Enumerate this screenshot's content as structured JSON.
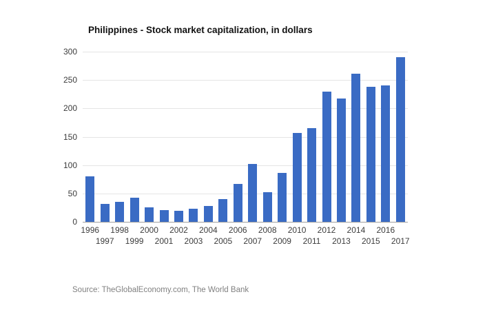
{
  "chart_data": {
    "type": "bar",
    "title": "Philippines - Stock market capitalization, in dollars",
    "categories": [
      "1996",
      "1997",
      "1998",
      "1999",
      "2000",
      "2001",
      "2002",
      "2003",
      "2004",
      "2005",
      "2006",
      "2007",
      "2008",
      "2009",
      "2010",
      "2011",
      "2012",
      "2013",
      "2014",
      "2015",
      "2016",
      "2017"
    ],
    "values": [
      80,
      31,
      35,
      42,
      25,
      21,
      19,
      23,
      28,
      40,
      67,
      102,
      52,
      86,
      157,
      165,
      229,
      217,
      261,
      238,
      240,
      290
    ],
    "xlabel": "",
    "ylabel": "",
    "ylim": [
      0,
      300
    ],
    "ytick_step": 50,
    "grid": true,
    "legend_position": "none",
    "bar_color": "#3a6bc4",
    "gridline_color": "#e4e4e4",
    "axis_line_color": "#9e9e9e",
    "tick_label_color": "#3c3c3c"
  },
  "source": "Source: TheGlobalEconomy.com, The World Bank"
}
